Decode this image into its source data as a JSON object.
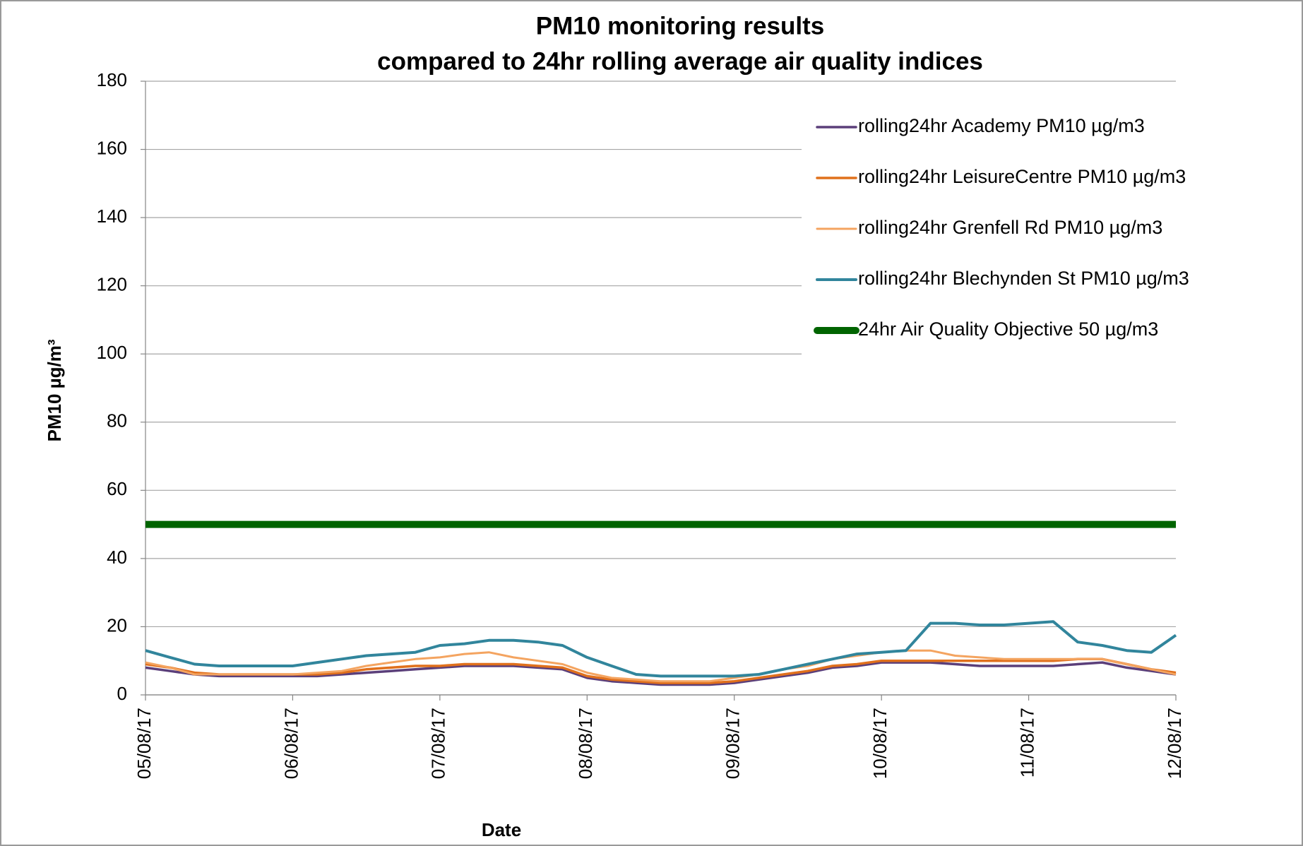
{
  "chart_data": {
    "type": "line",
    "title": "PM10 monitoring results",
    "subtitle": "compared to 24hr rolling average air quality indices",
    "x_label": "Date",
    "y_label": "PM10 µg/m³",
    "categories": [
      "05/08/17",
      null,
      null,
      null,
      null,
      null,
      "06/08/17",
      null,
      null,
      null,
      null,
      null,
      "07/08/17",
      null,
      null,
      null,
      null,
      null,
      "08/08/17",
      null,
      null,
      null,
      null,
      null,
      "09/08/17",
      null,
      null,
      null,
      null,
      null,
      "10/08/17",
      null,
      null,
      null,
      null,
      null,
      "11/08/17",
      null,
      null,
      null,
      null,
      null,
      "12/08/17"
    ],
    "ylim": [
      0,
      180
    ],
    "yticks": [
      0,
      20,
      40,
      60,
      80,
      100,
      120,
      140,
      160,
      180
    ],
    "grid": true,
    "legend": "upper right",
    "series": [
      {
        "name": "rolling24hr Academy PM10 µg/m3",
        "color": "#5b3f7a",
        "width": 3.5,
        "values": [
          8,
          7,
          6,
          5.5,
          5.5,
          5.5,
          5.5,
          5.5,
          6,
          6.5,
          7,
          7.5,
          8,
          8.5,
          8.5,
          8.5,
          8,
          7.5,
          5,
          4,
          3.5,
          3,
          3,
          3,
          3.5,
          4.5,
          5.5,
          6.5,
          8,
          8.5,
          9.5,
          9.5,
          9.5,
          9,
          8.5,
          8.5,
          8.5,
          8.5,
          9,
          9.5,
          8,
          7,
          6
        ]
      },
      {
        "name": "rolling24hr LeisureCentre PM10 µg/m3",
        "color": "#e0701c",
        "width": 3.5,
        "values": [
          9,
          8,
          6.5,
          6,
          6,
          6,
          6,
          6,
          6.5,
          7.5,
          8,
          8.5,
          8.5,
          9,
          9,
          9,
          8.5,
          8,
          5.5,
          4.5,
          4,
          3.5,
          3.5,
          3.5,
          4,
          5,
          6,
          7,
          8.5,
          9,
          10,
          10,
          10,
          10,
          10,
          10,
          10,
          10,
          10.5,
          10.5,
          9,
          7.5,
          6.5
        ]
      },
      {
        "name": "rolling24hr Grenfell Rd PM10 µg/m3",
        "color": "#f4a460",
        "width": 3,
        "values": [
          9.5,
          8,
          6,
          6,
          6,
          6,
          6,
          6.5,
          7,
          8.5,
          9.5,
          10.5,
          11,
          12,
          12.5,
          11,
          10,
          9,
          6.5,
          5,
          4.5,
          4,
          4,
          4,
          5,
          6,
          7.5,
          8.5,
          10.5,
          11.5,
          12.5,
          13,
          13,
          11.5,
          11,
          10.5,
          10.5,
          10.5,
          10.5,
          10.5,
          9,
          7.5,
          6
        ]
      },
      {
        "name": "rolling24hr Blechynden St PM10 µg/m3",
        "color": "#31859c",
        "width": 4,
        "values": [
          13,
          11,
          9,
          8.5,
          8.5,
          8.5,
          8.5,
          9.5,
          10.5,
          11.5,
          12,
          12.5,
          14.5,
          15,
          16,
          16,
          15.5,
          14.5,
          11,
          8.5,
          6,
          5.5,
          5.5,
          5.5,
          5.5,
          6,
          7.5,
          9,
          10.5,
          12,
          12.5,
          13,
          21,
          21,
          20.5,
          20.5,
          21,
          21.5,
          15.5,
          14.5,
          13,
          12.5,
          17.5
        ]
      },
      {
        "name": "24hr Air Quality Objective 50 µg/m3",
        "color": "#006400",
        "width": 10,
        "values": [
          50,
          50,
          50,
          50,
          50,
          50,
          50,
          50,
          50,
          50,
          50,
          50,
          50,
          50,
          50,
          50,
          50,
          50,
          50,
          50,
          50,
          50,
          50,
          50,
          50,
          50,
          50,
          50,
          50,
          50,
          50,
          50,
          50,
          50,
          50,
          50,
          50,
          50,
          50,
          50,
          50,
          50,
          50
        ]
      }
    ]
  }
}
